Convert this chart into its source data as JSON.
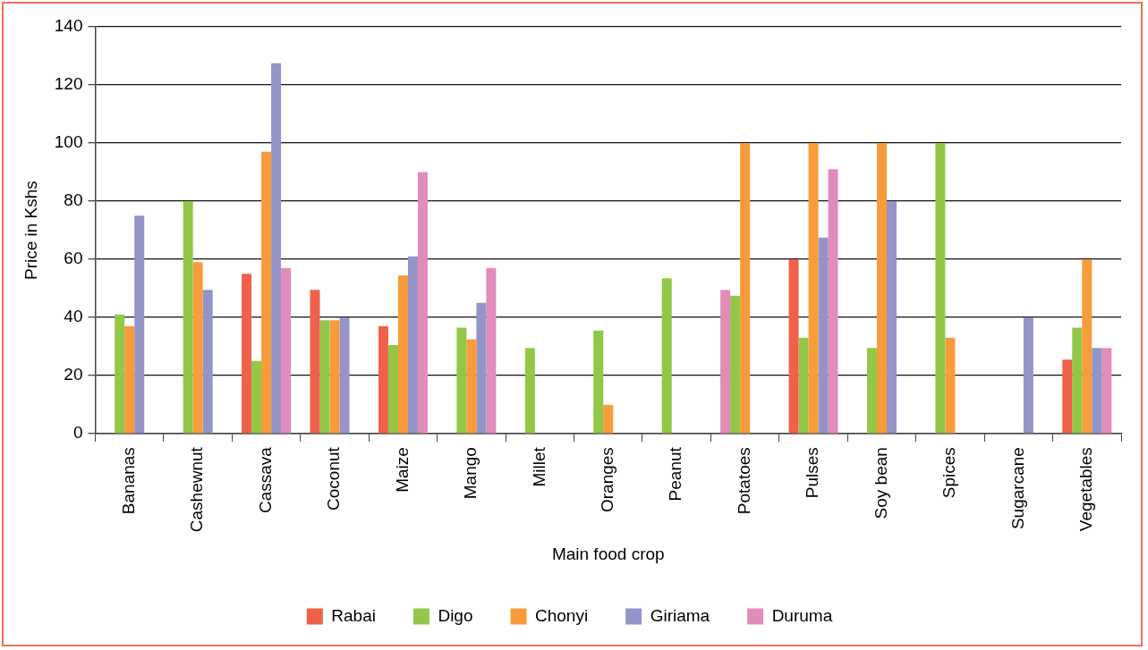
{
  "chart_data": {
    "type": "bar",
    "xlabel": "Main food crop",
    "ylabel": "Price in Kshs",
    "categories": [
      "Bananas",
      "Cashewnut",
      "Cassava",
      "Coconut",
      "Maize",
      "Mango",
      "Millet",
      "Oranges",
      "Peanut",
      "Potatoes",
      "Pulses",
      "Soy bean",
      "Spices",
      "Sugarcane",
      "Vegetables"
    ],
    "series": [
      {
        "name": "Rabai",
        "color": "#f06149",
        "colors": [
          "#f06149",
          "#f06149",
          "#f06149",
          "#f06149",
          "#f06149",
          "#f06149",
          "#f06149",
          "#f06149",
          "#f06149",
          "#e28cbb",
          "#f06149",
          "#f06149",
          "#f06149",
          "#f06149",
          "#f06149"
        ],
        "values": [
          null,
          null,
          55,
          49.5,
          37,
          null,
          null,
          null,
          null,
          49.5,
          60,
          null,
          null,
          null,
          25.5
        ]
      },
      {
        "name": "Digo",
        "color": "#92c747",
        "values": [
          41,
          80,
          25,
          39,
          30.5,
          36.5,
          29.5,
          35.5,
          53.5,
          47.5,
          33,
          29.5,
          100,
          null,
          36.5
        ]
      },
      {
        "name": "Chonyi",
        "color": "#f89c3b",
        "values": [
          37,
          59,
          97,
          39,
          54.5,
          32.5,
          null,
          10,
          null,
          100,
          100,
          100,
          33,
          null,
          60
        ]
      },
      {
        "name": "Giriama",
        "color": "#9494c8",
        "values": [
          75,
          49.5,
          127.5,
          40,
          61,
          45,
          null,
          null,
          null,
          null,
          67.5,
          80,
          null,
          40,
          29.5
        ]
      },
      {
        "name": "Duruma",
        "color": "#e28cbb",
        "values": [
          null,
          null,
          57,
          null,
          90,
          57,
          null,
          null,
          null,
          null,
          91,
          null,
          null,
          null,
          29.5
        ]
      }
    ],
    "ylim": [
      0,
      140
    ],
    "yticks": [
      0,
      20,
      40,
      60,
      80,
      100,
      120,
      140
    ],
    "grid": "y",
    "legend": "bottom"
  }
}
